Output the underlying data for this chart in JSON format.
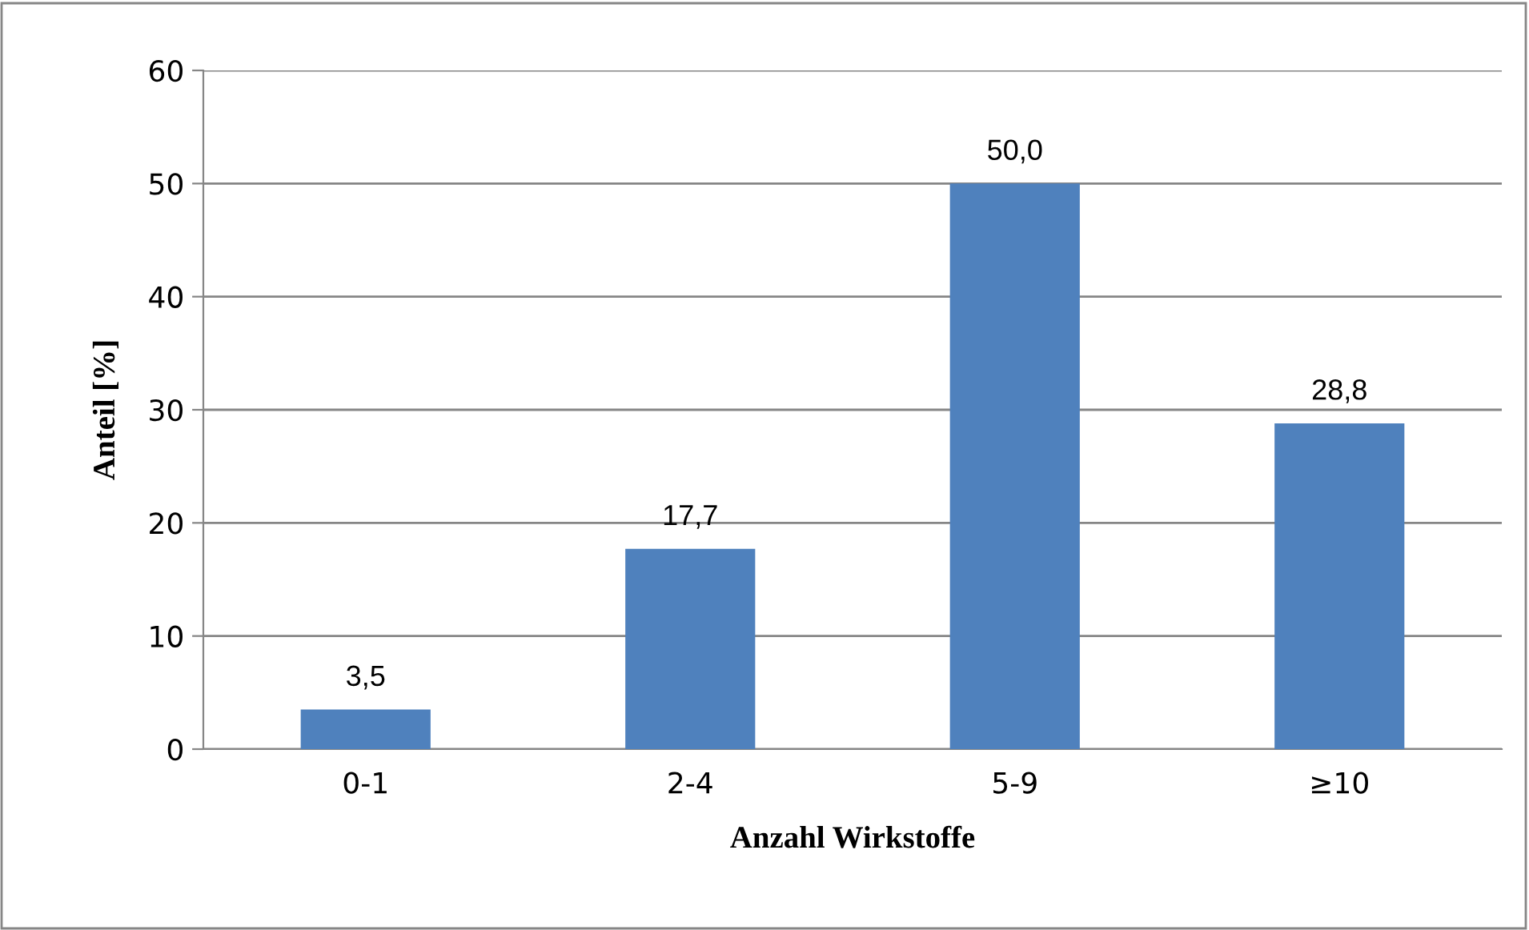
{
  "chart_data": {
    "type": "bar",
    "xlabel": "Anzahl Wirkstoffe",
    "ylabel": "Anteil [%]",
    "categories": [
      "0-1",
      "2-4",
      "5-9",
      "≥10"
    ],
    "values": [
      3.5,
      17.7,
      50.0,
      28.8
    ],
    "value_labels": [
      "3,5",
      "17,7",
      "50,0",
      "28,8"
    ],
    "color": "#4f81bd",
    "ylim": [
      0,
      60
    ],
    "yticks": [
      0,
      10,
      20,
      30,
      40,
      50,
      60
    ],
    "grid": "y"
  }
}
